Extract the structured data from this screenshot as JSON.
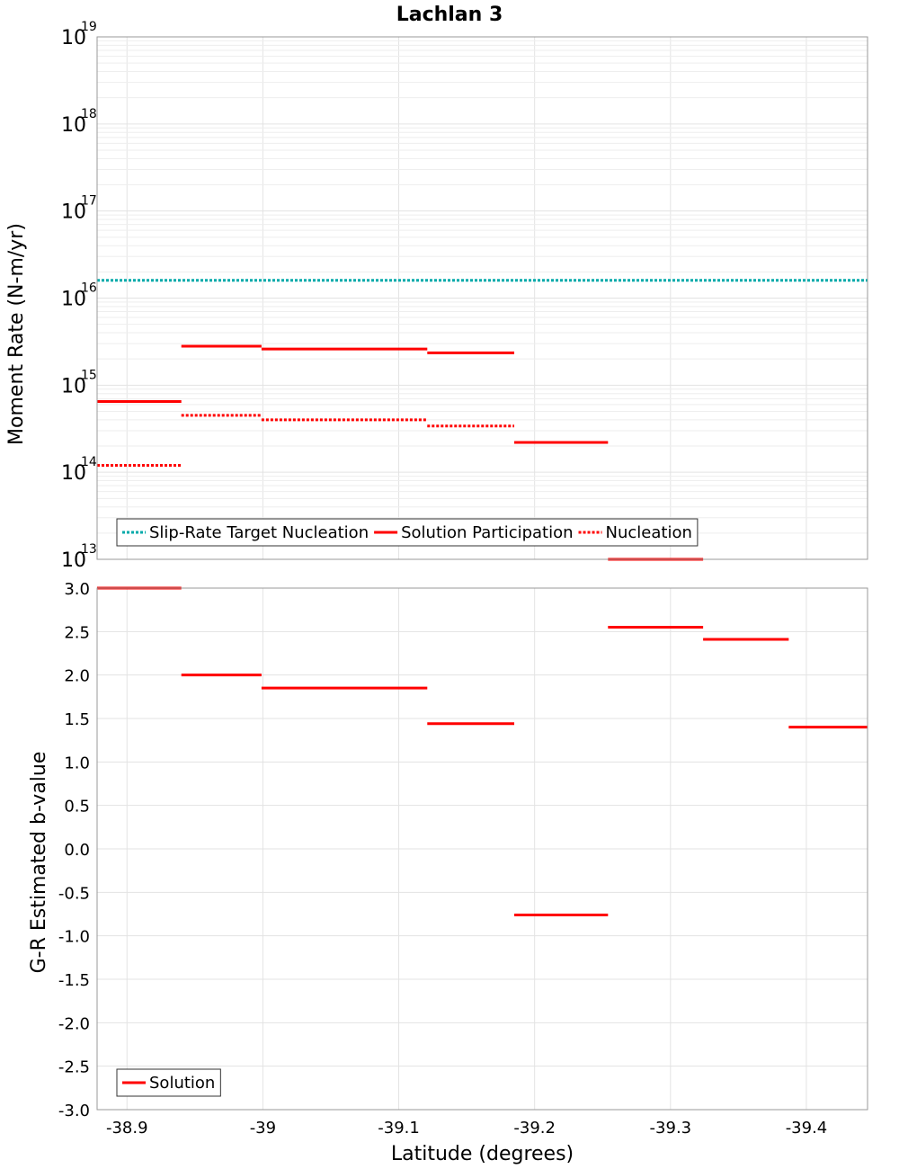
{
  "title": "Lachlan 3",
  "colors": {
    "solution": "#ff0000",
    "target": "#00aaaa",
    "grid": "#e3e3e3",
    "grid_minor": "#eeeeee",
    "frame": "#999999"
  },
  "x_axis": {
    "label": "Latitude (degrees)",
    "lim": [
      -38.878,
      -39.445
    ],
    "ticks": [
      -38.9,
      -39.0,
      -39.1,
      -39.2,
      -39.3,
      -39.4
    ],
    "tick_labels": [
      "-38.9",
      "-39",
      "-39.1",
      "-39.2",
      "-39.3",
      "-39.4"
    ]
  },
  "chart_data": [
    {
      "type": "line",
      "scale": "log",
      "ylabel": "Moment Rate (N-m/yr)",
      "ylim": [
        10000000000000.0,
        1e+19
      ],
      "ytick_base": "10",
      "ytick_exponents": [
        "13",
        "14",
        "15",
        "16",
        "17",
        "18",
        "19"
      ],
      "grid": true,
      "legend_position": "bottom-left",
      "series": [
        {
          "name": "Slip-Rate Target Nucleation",
          "style": "dotted",
          "color": "#00aaaa",
          "segments": [
            {
              "x0": -38.878,
              "x1": -39.445,
              "y": 1.6e+16
            }
          ]
        },
        {
          "name": "Solution Participation",
          "style": "solid",
          "color": "#ff0000",
          "segments": [
            {
              "x0": -38.878,
              "x1": -38.94,
              "y": 650000000000000.0
            },
            {
              "x0": -38.94,
              "x1": -38.999,
              "y": 2800000000000000.0
            },
            {
              "x0": -38.999,
              "x1": -39.121,
              "y": 2600000000000000.0
            },
            {
              "x0": -39.121,
              "x1": -39.185,
              "y": 2350000000000000.0
            },
            {
              "x0": -39.185,
              "x1": -39.254,
              "y": 220000000000000.0
            },
            {
              "x0": -39.254,
              "x1": -39.324,
              "y": 10000000000000.0
            }
          ]
        },
        {
          "name": "Nucleation",
          "style": "dotted",
          "color": "#ff0000",
          "segments": [
            {
              "x0": -38.878,
              "x1": -38.94,
              "y": 120000000000000.0
            },
            {
              "x0": -38.94,
              "x1": -38.999,
              "y": 450000000000000.0
            },
            {
              "x0": -38.999,
              "x1": -39.121,
              "y": 400000000000000.0
            },
            {
              "x0": -39.121,
              "x1": -39.185,
              "y": 340000000000000.0
            }
          ]
        }
      ]
    },
    {
      "type": "line",
      "scale": "linear",
      "ylabel": "G-R Estimated b-value",
      "ylim": [
        -3.0,
        3.0
      ],
      "yticks": [
        3.0,
        2.5,
        2.0,
        1.5,
        1.0,
        0.5,
        0.0,
        -0.5,
        -1.0,
        -1.5,
        -2.0,
        -2.5,
        -3.0
      ],
      "ytick_labels": [
        "3.0",
        "2.5",
        "2.0",
        "1.5",
        "1.0",
        "0.5",
        "0.0",
        "-0.5",
        "-1.0",
        "-1.5",
        "-2.0",
        "-2.5",
        "-3.0"
      ],
      "grid": true,
      "legend_position": "bottom-left",
      "series": [
        {
          "name": "Solution",
          "style": "solid",
          "color": "#ff0000",
          "segments": [
            {
              "x0": -38.878,
              "x1": -38.94,
              "y": 3.0
            },
            {
              "x0": -38.94,
              "x1": -38.999,
              "y": 2.0
            },
            {
              "x0": -38.999,
              "x1": -39.121,
              "y": 1.85
            },
            {
              "x0": -39.121,
              "x1": -39.185,
              "y": 1.44
            },
            {
              "x0": -39.185,
              "x1": -39.254,
              "y": -0.76
            },
            {
              "x0": -39.254,
              "x1": -39.324,
              "y": 2.55
            },
            {
              "x0": -39.324,
              "x1": -39.387,
              "y": 2.41
            },
            {
              "x0": -39.387,
              "x1": -39.445,
              "y": 1.4
            }
          ]
        }
      ]
    }
  ]
}
